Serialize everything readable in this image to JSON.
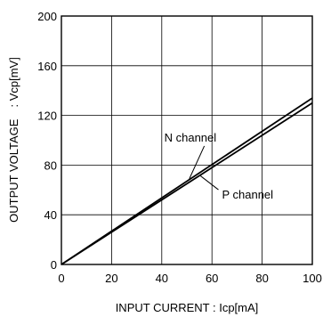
{
  "chart_data": {
    "type": "line",
    "xlabel": "INPUT CURRENT : Icp[mA]",
    "ylabel": "OUTPUT VOLTAGE　: Vcp[mV]",
    "xlim": [
      0,
      100
    ],
    "ylim": [
      0,
      200
    ],
    "x_ticks": [
      0,
      20,
      40,
      60,
      80,
      100
    ],
    "y_ticks": [
      0,
      40,
      80,
      120,
      160,
      200
    ],
    "grid": true,
    "legend": "none",
    "series": [
      {
        "name": "N channel",
        "x": [
          0,
          100
        ],
        "y": [
          0,
          134
        ]
      },
      {
        "name": "P channel",
        "x": [
          0,
          100
        ],
        "y": [
          0,
          130
        ]
      }
    ],
    "annotations": [
      {
        "text": "N channel",
        "series": "N channel",
        "label_x": 41,
        "label_y": 99,
        "point_x": 51,
        "point_y": 69
      },
      {
        "text": "P channel",
        "series": "P channel",
        "label_x": 64,
        "label_y": 53,
        "point_x": 55,
        "point_y": 72
      }
    ]
  }
}
